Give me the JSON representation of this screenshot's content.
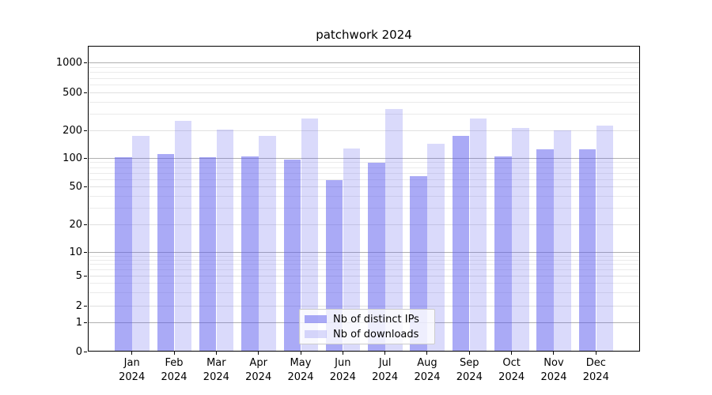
{
  "chart_data": {
    "type": "bar",
    "title": "patchwork 2024",
    "categories": [
      "Jan",
      "Feb",
      "Mar",
      "Apr",
      "May",
      "Jun",
      "Jul",
      "Aug",
      "Sep",
      "Oct",
      "Nov",
      "Dec"
    ],
    "category_year": "2024",
    "series": [
      {
        "name": "Nb of distinct IPs",
        "color": "rgba(85,85,238,0.50)",
        "values": [
          100,
          109,
          100,
          102,
          94,
          57,
          87,
          63,
          170,
          103,
          121,
          121
        ]
      },
      {
        "name": "Nb of downloads",
        "color": "rgba(85,85,238,0.22)",
        "values": [
          170,
          245,
          199,
          170,
          260,
          124,
          330,
          141,
          260,
          207,
          198,
          220
        ]
      }
    ],
    "yscale": "symlog",
    "yticks": [
      0,
      1,
      2,
      5,
      10,
      20,
      50,
      100,
      200,
      500,
      1000
    ],
    "ylim": [
      0,
      1500
    ],
    "grid": true,
    "legend_position": "lower center",
    "colors": {
      "grid_major": "#b0b0b0",
      "grid_minor": "#ebebeb",
      "axis": "#000000",
      "background": "#ffffff"
    }
  }
}
